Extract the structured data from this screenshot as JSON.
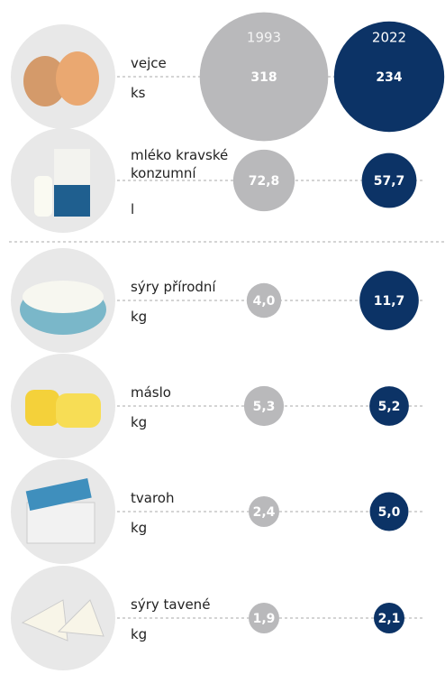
{
  "chart_data": {
    "type": "bubble",
    "categories": [
      "vejce",
      "mléko kravské konzumní",
      "sýry přírodní",
      "máslo",
      "tvaroh",
      "sýry tavené"
    ],
    "units": [
      "ks",
      "l",
      "kg",
      "kg",
      "kg",
      "kg"
    ],
    "series": [
      {
        "name": "1993",
        "color": "#b9b9bb",
        "values": [
          318,
          72.8,
          4.0,
          5.3,
          2.4,
          1.9
        ],
        "value_labels": [
          "318",
          "72,8",
          "4,0",
          "5,3",
          "2,4",
          "1,9"
        ]
      },
      {
        "name": "2022",
        "color": "#0c3366",
        "values": [
          234,
          57.7,
          11.7,
          5.2,
          5.0,
          2.1
        ],
        "value_labels": [
          "234",
          "57,7",
          "11,7",
          "5,2",
          "5,0",
          "2,1"
        ]
      }
    ]
  }
}
